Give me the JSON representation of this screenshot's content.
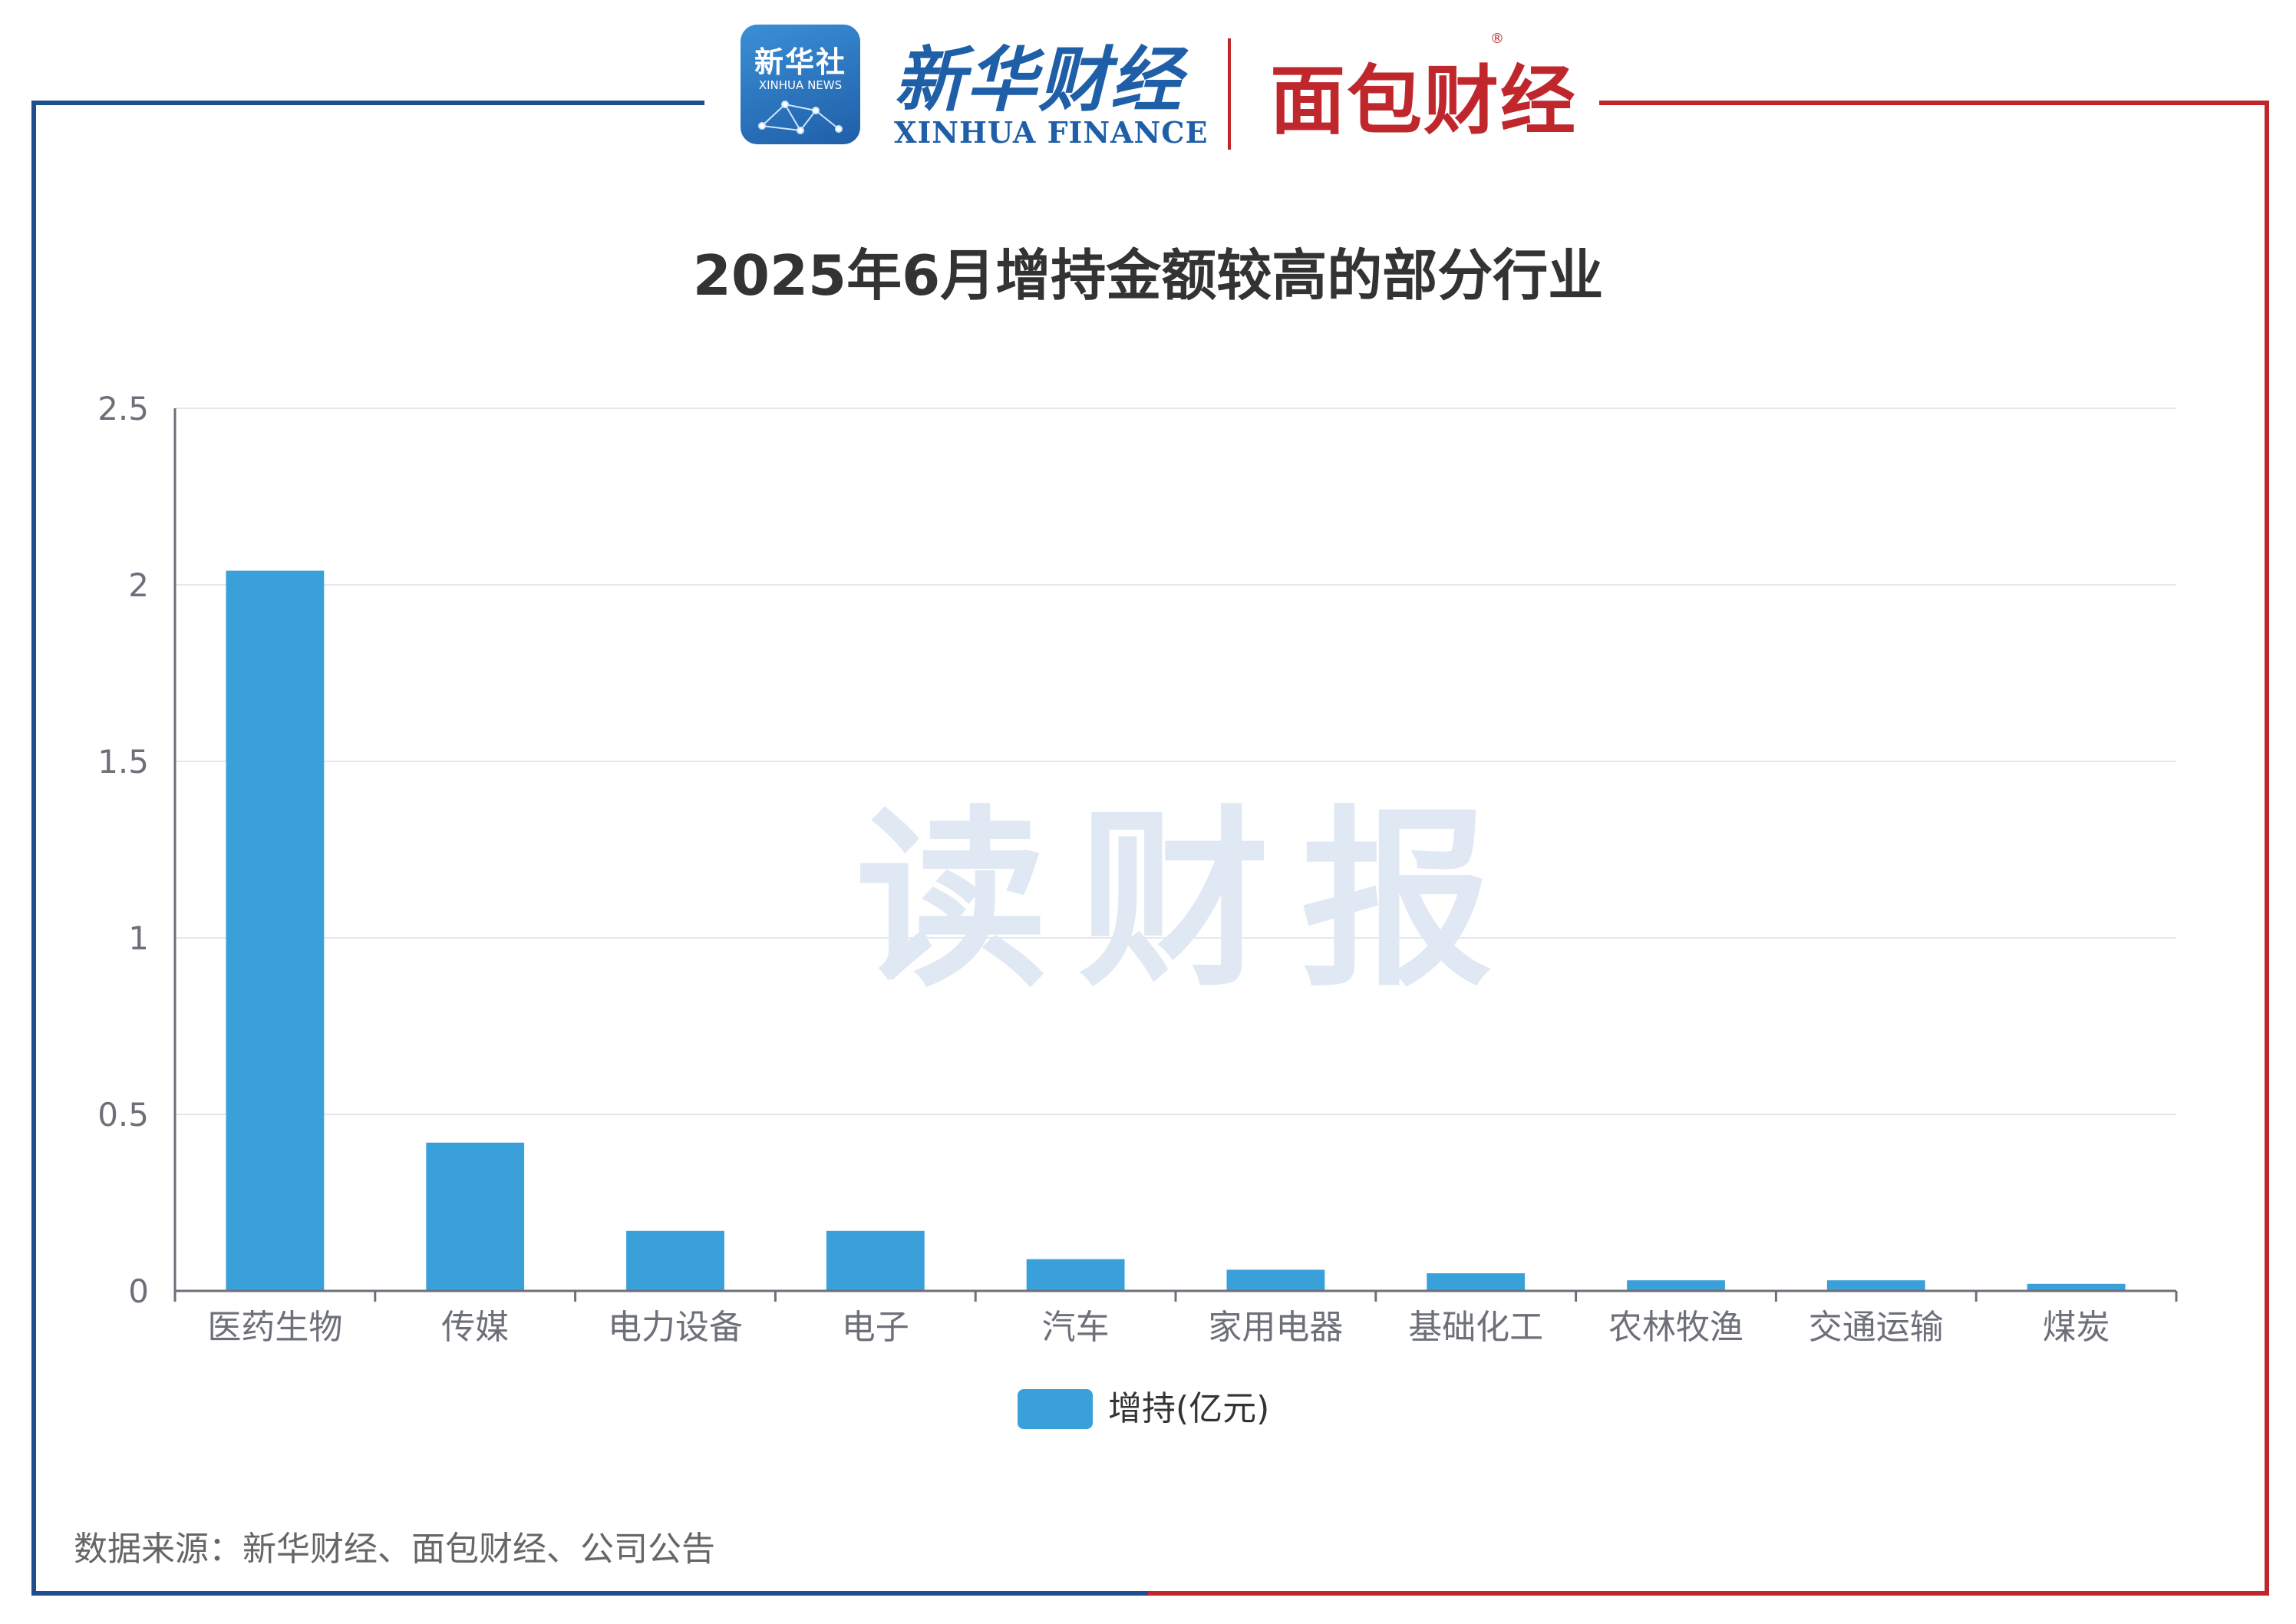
{
  "header": {
    "xinhua_badge_cn": "新华社",
    "xinhua_badge_en": "XINHUA NEWS",
    "xinhua_finance_cn": "新华财经",
    "xinhua_finance_en": "XINHUA FINANCE",
    "mianbao_logo": "面包财经",
    "reg_mark": "®"
  },
  "watermark": "读财报",
  "source_note": "数据来源：新华财经、面包财经、公司公告",
  "colors": {
    "bar": "#3aa0da",
    "frame_left": "#1f4e8c",
    "frame_right": "#c0272d",
    "grid": "#e3e8f0",
    "axis": "#6e7079",
    "tick_text": "#6e7079"
  },
  "chart_data": {
    "type": "bar",
    "title": "2025年6月增持金额较高的部分行业",
    "categories": [
      "医药生物",
      "传媒",
      "电力设备",
      "电子",
      "汽车",
      "家用电器",
      "基础化工",
      "农林牧渔",
      "交通运输",
      "煤炭"
    ],
    "series": [
      {
        "name": "增持(亿元)",
        "values": [
          2.04,
          0.42,
          0.17,
          0.17,
          0.09,
          0.06,
          0.05,
          0.03,
          0.03,
          0.02
        ]
      }
    ],
    "yticks": [
      "0",
      "0.5",
      "1",
      "1.5",
      "2",
      "2.5"
    ],
    "ylim": [
      0,
      2.5
    ],
    "grid": true,
    "legend_position": "bottom-center"
  }
}
